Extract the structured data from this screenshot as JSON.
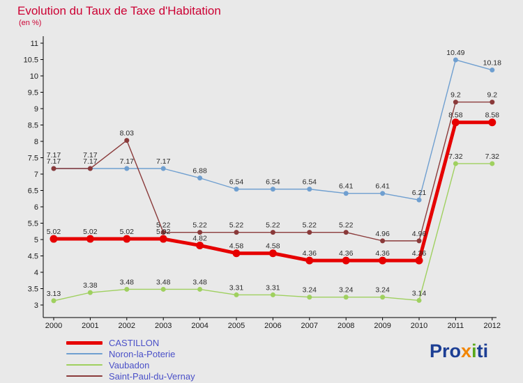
{
  "chart_data": {
    "type": "line",
    "title": "Evolution du Taux de Taxe d'Habitation",
    "subtitle": "(en %)",
    "x": [
      2000,
      2001,
      2002,
      2003,
      2004,
      2005,
      2006,
      2007,
      2008,
      2009,
      2010,
      2011,
      2012
    ],
    "ylim": [
      3,
      11
    ],
    "ytick_step": 0.5,
    "grid": false,
    "legend_position": "bottom-left",
    "series": [
      {
        "name": "CASTILLON",
        "color": "#e60000",
        "line_width": 5,
        "marker_radius": 5.5,
        "values": [
          5.02,
          5.02,
          5.02,
          5.02,
          4.82,
          4.58,
          4.58,
          4.36,
          4.36,
          4.36,
          4.36,
          8.58,
          8.58
        ]
      },
      {
        "name": "Noron-la-Poterie",
        "color": "#6f9fd0",
        "line_width": 1.4,
        "marker_radius": 3.5,
        "values": [
          7.17,
          7.17,
          7.17,
          7.17,
          6.88,
          6.54,
          6.54,
          6.54,
          6.41,
          6.41,
          6.21,
          10.49,
          10.18
        ]
      },
      {
        "name": "Vaubadon",
        "color": "#9fd05f",
        "line_width": 1.4,
        "marker_radius": 3.5,
        "values": [
          3.13,
          3.38,
          3.48,
          3.48,
          3.48,
          3.31,
          3.31,
          3.24,
          3.24,
          3.24,
          3.14,
          7.32,
          7.32
        ]
      },
      {
        "name": "Saint-Paul-du-Vernay",
        "color": "#8a3a3a",
        "line_width": 1.4,
        "marker_radius": 3.5,
        "values": [
          7.17,
          7.17,
          8.03,
          5.22,
          5.22,
          5.22,
          5.22,
          5.22,
          5.22,
          4.96,
          4.96,
          9.2,
          9.2
        ]
      }
    ]
  },
  "colors": {
    "background": "#e9e9e9",
    "title": "#cc0033",
    "legend_text": "#4a50c8",
    "axis": "#000000",
    "tick_label": "#1a1a1a",
    "point_label": "#2a2a2a"
  },
  "logo": {
    "text": "Proxiti",
    "letters": [
      {
        "ch": "P",
        "color": "#1c3e94"
      },
      {
        "ch": "r",
        "color": "#1c3e94"
      },
      {
        "ch": "o",
        "color": "#1c3e94"
      },
      {
        "ch": "x",
        "color": "#f28500"
      },
      {
        "ch": "i",
        "color": "#59a81c"
      },
      {
        "ch": "t",
        "color": "#1c3e94"
      },
      {
        "ch": "i",
        "color": "#1c3e94"
      }
    ]
  }
}
